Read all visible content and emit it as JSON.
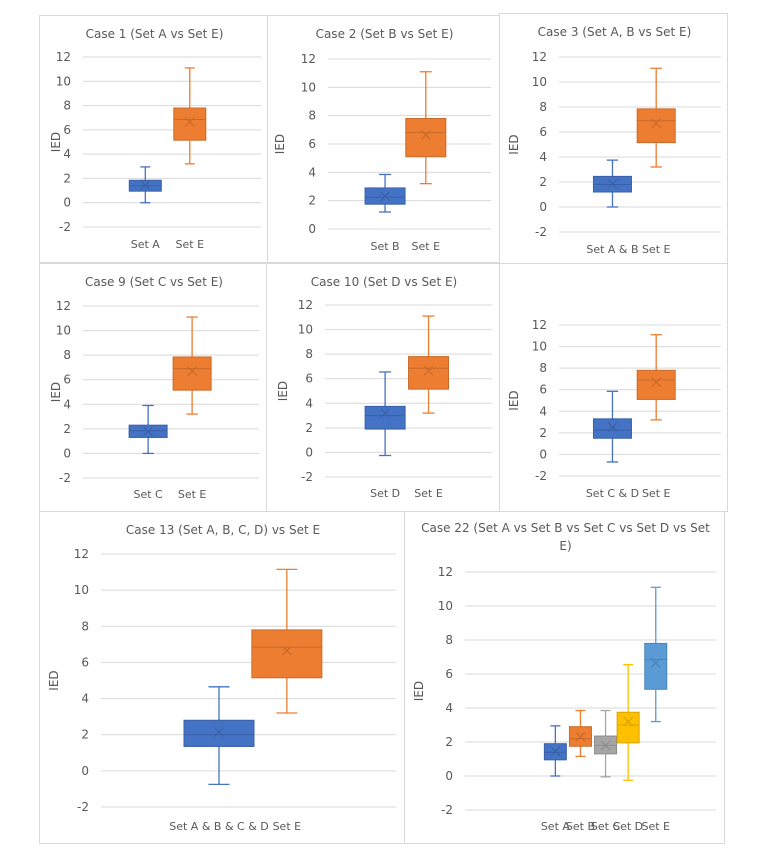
{
  "chart_data": [
    {
      "type": "box",
      "title": "Case 1 (Set A vs Set E)",
      "ylabel": "IED",
      "ylim": [
        -2,
        12
      ],
      "yticks": [
        -2,
        0,
        2,
        4,
        6,
        8,
        10,
        12
      ],
      "grid": true,
      "categories": [
        "Set A",
        "Set E"
      ],
      "series": [
        {
          "name": "Set A",
          "color": "#4472c4",
          "min": 0.0,
          "q1": 0.95,
          "median": 1.4,
          "q3": 1.85,
          "max": 2.95,
          "mean": 1.45
        },
        {
          "name": "Set E",
          "color": "#ed7d31",
          "min": 3.2,
          "q1": 5.15,
          "median": 6.85,
          "q3": 7.8,
          "max": 11.1,
          "mean": 6.65
        }
      ]
    },
    {
      "type": "box",
      "title": "Case 2 (Set B vs Set E)",
      "ylabel": "IED",
      "ylim": [
        0,
        12
      ],
      "yticks": [
        0,
        2,
        4,
        6,
        8,
        10,
        12
      ],
      "grid": true,
      "categories": [
        "Set B",
        "Set E"
      ],
      "series": [
        {
          "name": "Set B",
          "color": "#4472c4",
          "min": 1.2,
          "q1": 1.75,
          "median": 2.25,
          "q3": 2.9,
          "max": 3.85,
          "mean": 2.3
        },
        {
          "name": "Set E",
          "color": "#ed7d31",
          "min": 3.2,
          "q1": 5.1,
          "median": 6.8,
          "q3": 7.8,
          "max": 11.1,
          "mean": 6.65
        }
      ]
    },
    {
      "type": "box",
      "title": "Case 3 (Set A, B vs Set E)",
      "ylabel": "IED",
      "ylim": [
        -2,
        12
      ],
      "yticks": [
        -2,
        0,
        2,
        4,
        6,
        8,
        10,
        12
      ],
      "grid": true,
      "categories": [
        "Set A & B",
        "Set E"
      ],
      "series": [
        {
          "name": "Set A & B",
          "color": "#4472c4",
          "min": 0.0,
          "q1": 1.2,
          "median": 1.8,
          "q3": 2.45,
          "max": 3.75,
          "mean": 1.85
        },
        {
          "name": "Set E",
          "color": "#ed7d31",
          "min": 3.2,
          "q1": 5.15,
          "median": 6.9,
          "q3": 7.85,
          "max": 11.1,
          "mean": 6.7
        }
      ]
    },
    {
      "type": "box",
      "title": "Case 9 (Set C vs Set E)",
      "ylabel": "IED",
      "ylim": [
        -2,
        12
      ],
      "yticks": [
        -2,
        0,
        2,
        4,
        6,
        8,
        10,
        12
      ],
      "grid": true,
      "categories": [
        "Set C",
        "Set E"
      ],
      "series": [
        {
          "name": "Set C",
          "color": "#4472c4",
          "min": 0.0,
          "q1": 1.3,
          "median": 1.85,
          "q3": 2.3,
          "max": 3.9,
          "mean": 1.8
        },
        {
          "name": "Set E",
          "color": "#ed7d31",
          "min": 3.2,
          "q1": 5.15,
          "median": 6.9,
          "q3": 7.85,
          "max": 11.1,
          "mean": 6.7
        }
      ]
    },
    {
      "type": "box",
      "title": "Case 10 (Set D vs Set E)",
      "ylabel": "IED",
      "ylim": [
        -2,
        12
      ],
      "yticks": [
        -2,
        0,
        2,
        4,
        6,
        8,
        10,
        12
      ],
      "grid": true,
      "categories": [
        "Set D",
        "Set E"
      ],
      "series": [
        {
          "name": "Set D",
          "color": "#4472c4",
          "min": -0.25,
          "q1": 1.9,
          "median": 3.0,
          "q3": 3.75,
          "max": 6.55,
          "mean": 3.2
        },
        {
          "name": "Set E",
          "color": "#ed7d31",
          "min": 3.2,
          "q1": 5.15,
          "median": 6.85,
          "q3": 7.8,
          "max": 11.1,
          "mean": 6.65
        }
      ]
    },
    {
      "type": "box",
      "title": "",
      "ylabel": "IED",
      "ylim": [
        -2,
        12
      ],
      "yticks": [
        -2,
        0,
        2,
        4,
        6,
        8,
        10,
        12
      ],
      "grid": true,
      "categories": [
        "Set C & D",
        "Set E"
      ],
      "series": [
        {
          "name": "Set C & D",
          "color": "#4472c4",
          "min": -0.7,
          "q1": 1.5,
          "median": 2.25,
          "q3": 3.3,
          "max": 5.85,
          "mean": 2.55
        },
        {
          "name": "Set E",
          "color": "#ed7d31",
          "min": 3.2,
          "q1": 5.1,
          "median": 6.9,
          "q3": 7.8,
          "max": 11.1,
          "mean": 6.7
        }
      ]
    },
    {
      "type": "box",
      "title": "Case 13 (Set A, B, C, D) vs Set E",
      "ylabel": "IED",
      "ylim": [
        -2,
        12
      ],
      "yticks": [
        -2,
        0,
        2,
        4,
        6,
        8,
        10,
        12
      ],
      "grid": true,
      "categories": [
        "Set A & B & C & D",
        "Set E"
      ],
      "series": [
        {
          "name": "Set A & B & C & D",
          "color": "#4472c4",
          "min": -0.75,
          "q1": 1.35,
          "median": 2.0,
          "q3": 2.8,
          "max": 4.65,
          "mean": 2.15
        },
        {
          "name": "Set E",
          "color": "#ed7d31",
          "min": 3.2,
          "q1": 5.15,
          "median": 6.85,
          "q3": 7.8,
          "max": 11.15,
          "mean": 6.65
        }
      ]
    },
    {
      "type": "box",
      "title": "Case 22 (Set A vs Set B vs Set C vs Set D vs Set E)",
      "ylabel": "IED",
      "ylim": [
        -2,
        12
      ],
      "yticks": [
        -2,
        0,
        2,
        4,
        6,
        8,
        10,
        12
      ],
      "grid": true,
      "categories": [
        "Set A",
        "Set B",
        "Set C",
        "Set D",
        "Set E"
      ],
      "series": [
        {
          "name": "Set A",
          "color": "#4472c4",
          "min": 0.0,
          "q1": 0.95,
          "median": 1.4,
          "q3": 1.9,
          "max": 2.95,
          "mean": 1.45
        },
        {
          "name": "Set B",
          "color": "#ed7d31",
          "min": 1.15,
          "q1": 1.75,
          "median": 2.2,
          "q3": 2.9,
          "max": 3.85,
          "mean": 2.3
        },
        {
          "name": "Set C",
          "color": "#a5a5a5",
          "min": -0.05,
          "q1": 1.3,
          "median": 1.8,
          "q3": 2.35,
          "max": 3.85,
          "mean": 1.8
        },
        {
          "name": "Set D",
          "color": "#ffc000",
          "min": -0.25,
          "q1": 1.95,
          "median": 3.0,
          "q3": 3.75,
          "max": 6.55,
          "mean": 3.2
        },
        {
          "name": "Set E",
          "color": "#5b9bd5",
          "min": 3.2,
          "q1": 5.1,
          "median": 6.85,
          "q3": 7.8,
          "max": 11.1,
          "mean": 6.65
        }
      ]
    }
  ]
}
